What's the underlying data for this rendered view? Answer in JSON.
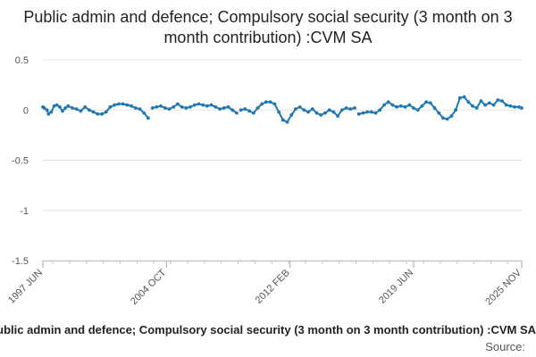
{
  "chart_data": {
    "type": "line",
    "title": "Public admin and defence; Compulsory social security (3 month on 3 month contribution) :CVM SA",
    "xlabel": "",
    "ylabel": "",
    "series": [
      {
        "name": "Public admin and defence; Compulsory social security (3 month on 3 month contribution) :CVM SA",
        "color": "#1f78b4",
        "points": [
          [
            "1997-06",
            0.03
          ],
          [
            "1997-07",
            0.02
          ],
          [
            "1997-09",
            0.0
          ],
          [
            "1997-10",
            -0.04
          ],
          [
            "1997-12",
            -0.02
          ],
          [
            "1998-02",
            0.04
          ],
          [
            "1998-04",
            0.05
          ],
          [
            "1998-06",
            0.03
          ],
          [
            "1998-08",
            -0.01
          ],
          [
            "1998-10",
            0.02
          ],
          [
            "1998-12",
            0.04
          ],
          [
            "1999-03",
            0.02
          ],
          [
            "1999-06",
            0.01
          ],
          [
            "1999-09",
            -0.01
          ],
          [
            "1999-12",
            0.03
          ],
          [
            "2000-03",
            0.0
          ],
          [
            "2000-06",
            -0.02
          ],
          [
            "2000-09",
            -0.04
          ],
          [
            "2000-12",
            -0.04
          ],
          [
            "2001-03",
            -0.02
          ],
          [
            "2001-06",
            0.03
          ],
          [
            "2001-09",
            0.05
          ],
          [
            "2001-12",
            0.06
          ],
          [
            "2002-03",
            0.06
          ],
          [
            "2002-06",
            0.05
          ],
          [
            "2002-09",
            0.04
          ],
          [
            "2002-12",
            0.02
          ],
          [
            "2003-03",
            0.01
          ],
          [
            "2003-06",
            -0.03
          ],
          [
            "2003-09",
            -0.08
          ],
          [
            "2003-12",
            0.02
          ],
          [
            "2004-03",
            0.03
          ],
          [
            "2004-06",
            0.04
          ],
          [
            "2004-09",
            0.02
          ],
          [
            "2004-12",
            0.01
          ],
          [
            "2005-03",
            0.03
          ],
          [
            "2005-06",
            0.06
          ],
          [
            "2005-09",
            0.03
          ],
          [
            "2005-12",
            0.02
          ],
          [
            "2006-03",
            0.03
          ],
          [
            "2006-06",
            0.05
          ],
          [
            "2006-09",
            0.06
          ],
          [
            "2006-12",
            0.05
          ],
          [
            "2007-03",
            0.04
          ],
          [
            "2007-06",
            0.05
          ],
          [
            "2007-09",
            0.03
          ],
          [
            "2007-12",
            0.01
          ],
          [
            "2008-03",
            0.02
          ],
          [
            "2008-06",
            0.03
          ],
          [
            "2008-09",
            0.0
          ],
          [
            "2008-12",
            -0.03
          ],
          [
            "2009-03",
            0.0
          ],
          [
            "2009-06",
            0.01
          ],
          [
            "2009-09",
            -0.01
          ],
          [
            "2009-12",
            -0.03
          ],
          [
            "2010-03",
            0.02
          ],
          [
            "2010-06",
            0.06
          ],
          [
            "2010-09",
            0.08
          ],
          [
            "2010-12",
            0.08
          ],
          [
            "2011-03",
            0.06
          ],
          [
            "2011-06",
            -0.02
          ],
          [
            "2011-09",
            -0.1
          ],
          [
            "2011-12",
            -0.12
          ],
          [
            "2012-03",
            -0.05
          ],
          [
            "2012-06",
            0.01
          ],
          [
            "2012-09",
            0.03
          ],
          [
            "2012-12",
            0.0
          ],
          [
            "2013-03",
            -0.02
          ],
          [
            "2013-06",
            0.01
          ],
          [
            "2013-09",
            -0.03
          ],
          [
            "2013-12",
            -0.05
          ],
          [
            "2014-03",
            -0.03
          ],
          [
            "2014-06",
            0.0
          ],
          [
            "2014-09",
            -0.02
          ],
          [
            "2014-12",
            -0.06
          ],
          [
            "2015-03",
            0.0
          ],
          [
            "2015-06",
            0.02
          ],
          [
            "2015-09",
            0.01
          ],
          [
            "2015-12",
            0.02
          ],
          [
            "2016-03",
            -0.04
          ],
          [
            "2016-06",
            -0.03
          ],
          [
            "2016-09",
            -0.02
          ],
          [
            "2016-12",
            -0.02
          ],
          [
            "2017-03",
            -0.03
          ],
          [
            "2017-06",
            0.0
          ],
          [
            "2017-09",
            0.05
          ],
          [
            "2017-12",
            0.08
          ],
          [
            "2018-03",
            0.05
          ],
          [
            "2018-06",
            0.03
          ],
          [
            "2018-09",
            0.04
          ],
          [
            "2018-12",
            0.03
          ],
          [
            "2019-03",
            0.05
          ],
          [
            "2019-06",
            0.02
          ],
          [
            "2019-09",
            0.0
          ],
          [
            "2019-12",
            0.04
          ],
          [
            "2020-03",
            0.08
          ],
          [
            "2020-06",
            0.07
          ],
          [
            "2020-09",
            0.02
          ],
          [
            "2020-12",
            -0.03
          ],
          [
            "2021-03",
            -0.08
          ],
          [
            "2021-06",
            -0.09
          ],
          [
            "2021-09",
            -0.06
          ],
          [
            "2021-12",
            0.0
          ],
          [
            "2022-03",
            0.12
          ],
          [
            "2022-06",
            0.13
          ],
          [
            "2022-09",
            0.08
          ],
          [
            "2022-12",
            0.04
          ],
          [
            "2023-03",
            0.02
          ],
          [
            "2023-06",
            0.09
          ],
          [
            "2023-09",
            0.05
          ],
          [
            "2023-12",
            0.07
          ],
          [
            "2024-03",
            0.05
          ],
          [
            "2024-06",
            0.1
          ],
          [
            "2024-09",
            0.09
          ],
          [
            "2024-12",
            0.05
          ],
          [
            "2025-03",
            0.04
          ],
          [
            "2025-06",
            0.03
          ],
          [
            "2025-09",
            0.03
          ],
          [
            "2025-11",
            0.02
          ]
        ]
      }
    ],
    "gaps_after": [
      "2003-09",
      "2008-12",
      "2015-12"
    ],
    "yticks": [
      0.5,
      0,
      -0.5,
      -1,
      -1.5
    ],
    "ytick_labels": [
      "0.5",
      "0",
      "-0.5",
      "-1",
      "-1.5"
    ],
    "ylim": [
      -1.5,
      0.5
    ],
    "xlim": [
      "1997-06",
      "2025-11"
    ],
    "xticks": [
      {
        "date": "1997-06",
        "label": "1997 JUN"
      },
      {
        "date": "2004-10",
        "label": "2004 OCT"
      },
      {
        "date": "2012-02",
        "label": "2012 FEB"
      },
      {
        "date": "2019-06",
        "label": "2019 JUN"
      },
      {
        "date": "2025-11",
        "label": "2025 NOV"
      }
    ],
    "grid": true,
    "legend_position": "bottom",
    "source_label": "Source:"
  }
}
